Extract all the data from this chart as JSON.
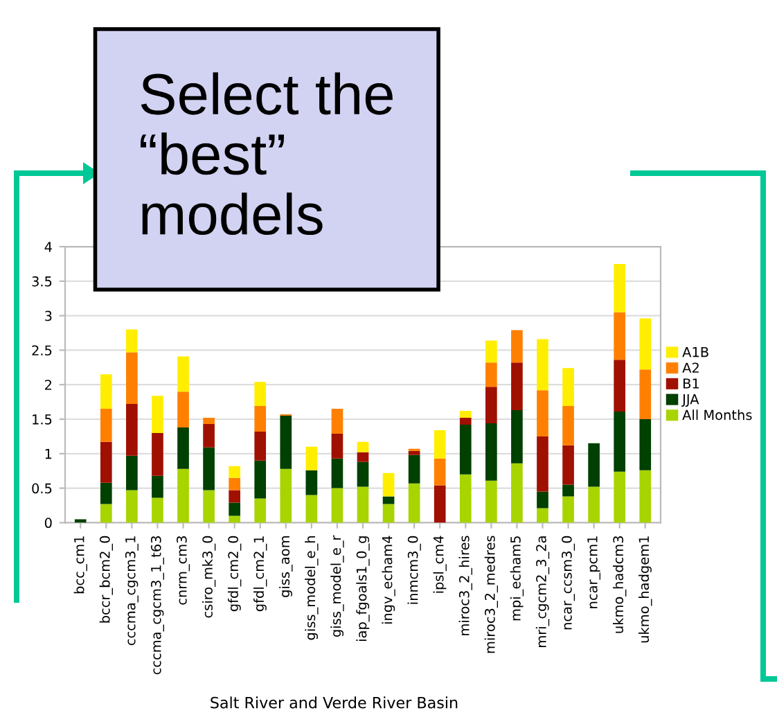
{
  "chart_data": {
    "type": "bar",
    "stacked": true,
    "categories": [
      "bcc_cm1",
      "bccr_bcm2_0",
      "cccma_cgcm3_1",
      "cccma_cgcm3_1_t63",
      "cnrm_cm3",
      "csiro_mk3_0",
      "gfdl_cm2_0",
      "gfdl_cm2_1",
      "giss_aom",
      "giss_model_e_h",
      "giss_model_e_r",
      "iap_fgoals1_0_g",
      "ingv_echam4",
      "inmcm3_0",
      "ipsl_cm4",
      "miroc3_2_hires",
      "miroc3_2_medres",
      "mpi_echam5",
      "mri_cgcm2_3_2a",
      "ncar_ccsm3_0",
      "ncar_pcm1",
      "ukmo_hadcm3",
      "ukmo_hadgem1"
    ],
    "series": [
      {
        "name": "All Months",
        "color": "#a8d400",
        "values": [
          0,
          0.27,
          0.47,
          0.36,
          0.78,
          0.47,
          0.1,
          0.35,
          0.78,
          0.4,
          0.5,
          0.52,
          0.27,
          0.57,
          0,
          0.7,
          0.61,
          0.86,
          0.21,
          0.38,
          0.52,
          0.74,
          0.76
        ]
      },
      {
        "name": "JJA",
        "color": "#004000",
        "values": [
          0.05,
          0.31,
          0.5,
          0.32,
          0.6,
          0.62,
          0.19,
          0.55,
          0.77,
          0.36,
          0.43,
          0.36,
          0.11,
          0.41,
          0,
          0.72,
          0.83,
          0.77,
          0.24,
          0.17,
          0.63,
          0.87,
          0.74
        ]
      },
      {
        "name": "B1",
        "color": "#a01000",
        "values": [
          0,
          0.59,
          0.75,
          0.62,
          0,
          0.34,
          0.18,
          0.42,
          0,
          0,
          0.36,
          0.14,
          0,
          0.06,
          0.54,
          0.1,
          0.53,
          0.69,
          0.8,
          0.57,
          0,
          0.75,
          0
        ]
      },
      {
        "name": "A2",
        "color": "#ff8000",
        "values": [
          0,
          0.48,
          0.75,
          0,
          0.52,
          0.09,
          0.18,
          0.37,
          0.02,
          0,
          0.36,
          0,
          0,
          0.03,
          0.39,
          0,
          0.35,
          0.47,
          0.67,
          0.57,
          0,
          0.69,
          0.72
        ]
      },
      {
        "name": "A1B",
        "color": "#ffee00",
        "values": [
          0,
          0.5,
          0.33,
          0.54,
          0.51,
          0,
          0.17,
          0.35,
          0,
          0.34,
          0,
          0.15,
          0.34,
          0,
          0.41,
          0.1,
          0.32,
          null,
          0.74,
          0.55,
          0,
          0.7,
          0.74
        ]
      }
    ],
    "ylim": [
      0,
      4
    ],
    "yticks": [
      0,
      0.5,
      1,
      1.5,
      2,
      2.5,
      3,
      3.5,
      4
    ],
    "grid": "y",
    "legend": "right",
    "xlabel": "Salt River and Verde River Basin",
    "annotations": [
      "Select the “best” models"
    ]
  }
}
